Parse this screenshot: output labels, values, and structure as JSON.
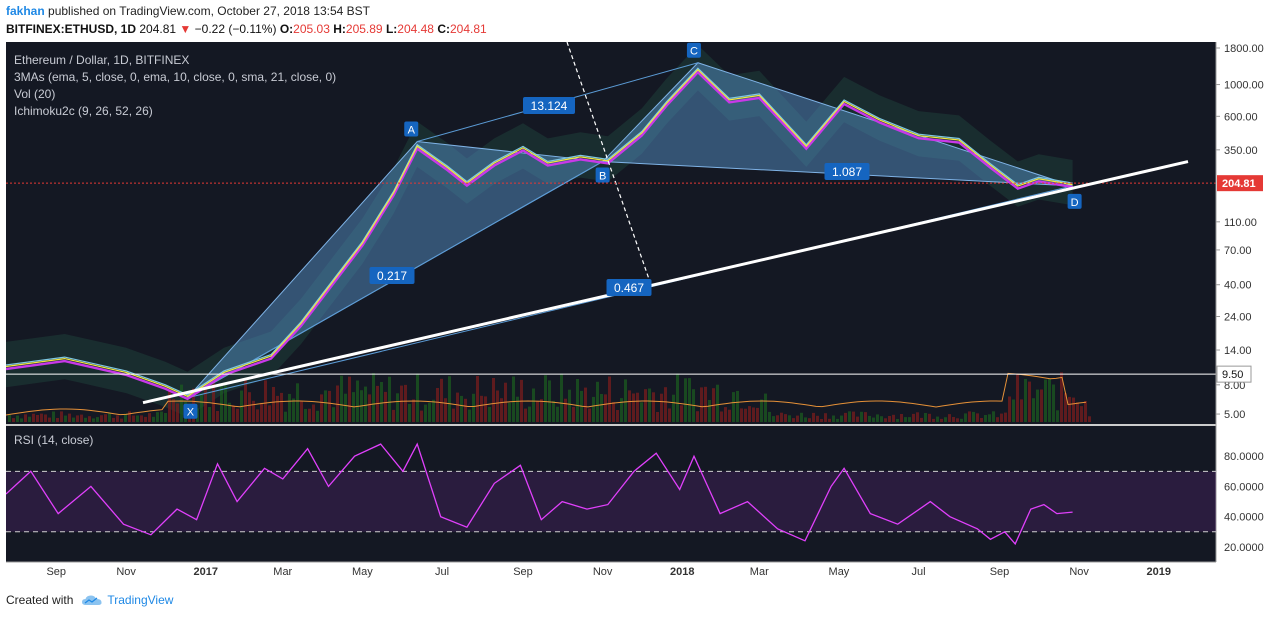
{
  "header": {
    "author": "fakhan",
    "published": "published on TradingView.com, October 27, 2018 13:54 BST",
    "symbol": "BITFINEX:ETHUSD, 1D",
    "last": "204.81",
    "change": "−0.22 (−0.11%)",
    "o_label": "O:",
    "o": "205.03",
    "h_label": "H:",
    "h": "205.89",
    "l_label": "L:",
    "l": "204.48",
    "c_label": "C:",
    "c": "204.81"
  },
  "legend": {
    "title": "Ethereum / Dollar, 1D, BITFINEX",
    "ma": "3MAs (ema, 5, close, 0, ema, 10, close, 0, sma, 21, close, 0)",
    "vol": "Vol (20)",
    "ichimoku": "Ichimoku2c (9, 26, 52, 26)"
  },
  "rsi_label": "RSI (14, close)",
  "footer": {
    "created": "Created with",
    "brand": "TradingView"
  },
  "colors": {
    "bg": "#141823",
    "price_line": "#e53935",
    "rsi": "#e040fb",
    "pattern_fill": "#5b9bd5",
    "label_bg": "#1565c0",
    "trendline": "#ffffff"
  },
  "chart_data": [
    {
      "type": "line",
      "title": "Ethereum / Dollar, 1D, BITFINEX",
      "y_scale": "log",
      "y_ticks": [
        1800,
        1000,
        600,
        350,
        110,
        70,
        40,
        24,
        14,
        8,
        5
      ],
      "y_tick_labels": [
        "1800.00",
        "1000.00",
        "600.00",
        "350.00",
        "110.00",
        "70.00",
        "40.00",
        "24.00",
        "14.00",
        "8.00",
        "5.00"
      ],
      "x_tick_labels": [
        "Sep",
        "Nov",
        "2017",
        "Mar",
        "May",
        "Jul",
        "Sep",
        "Nov",
        "2018",
        "Mar",
        "May",
        "Jul",
        "Sep",
        "Nov",
        "2019"
      ],
      "current_price": 204.81,
      "current_price_label": "204.81",
      "level_line": 9.5,
      "level_label": "9.50",
      "pattern_points": [
        {
          "name": "X",
          "date": "2016-12-18",
          "price": 6.5
        },
        {
          "name": "A",
          "date": "2017-06-12",
          "price": 400
        },
        {
          "name": "B",
          "date": "2017-11-01",
          "price": 290
        },
        {
          "name": "C",
          "date": "2018-01-13",
          "price": 1420
        },
        {
          "name": "D",
          "date": "2018-10-27",
          "price": 196
        }
      ],
      "ratios": [
        "13.124",
        "1.087",
        "0.217",
        "0.467"
      ],
      "series": [
        {
          "values": [
            [
              "2016-08-01",
              11
            ],
            [
              "2016-09-15",
              12.5
            ],
            [
              "2016-11-01",
              10
            ],
            [
              "2016-12-01",
              8
            ],
            [
              "2016-12-18",
              6.8
            ],
            [
              "2017-01-15",
              10
            ],
            [
              "2017-02-20",
              13
            ],
            [
              "2017-03-15",
              22
            ],
            [
              "2017-04-10",
              45
            ],
            [
              "2017-05-01",
              80
            ],
            [
              "2017-05-25",
              180
            ],
            [
              "2017-06-12",
              380
            ],
            [
              "2017-07-05",
              270
            ],
            [
              "2017-07-20",
              210
            ],
            [
              "2017-08-10",
              290
            ],
            [
              "2017-09-01",
              370
            ],
            [
              "2017-09-20",
              290
            ],
            [
              "2017-10-15",
              320
            ],
            [
              "2017-11-05",
              300
            ],
            [
              "2017-12-01",
              470
            ],
            [
              "2017-12-20",
              760
            ],
            [
              "2018-01-13",
              1300
            ],
            [
              "2018-02-06",
              800
            ],
            [
              "2018-03-01",
              860
            ],
            [
              "2018-04-06",
              380
            ],
            [
              "2018-05-05",
              780
            ],
            [
              "2018-06-01",
              580
            ],
            [
              "2018-07-01",
              450
            ],
            [
              "2018-08-01",
              420
            ],
            [
              "2018-08-25",
              280
            ],
            [
              "2018-09-15",
              200
            ],
            [
              "2018-10-01",
              225
            ],
            [
              "2018-10-27",
              205
            ]
          ]
        }
      ]
    },
    {
      "type": "line",
      "title": "RSI (14, close)",
      "y_ticks": [
        80,
        60,
        40,
        20
      ],
      "y_tick_labels": [
        "80.0000",
        "60.0000",
        "40.0000",
        "20.0000"
      ],
      "bands": [
        70,
        30
      ],
      "series": [
        {
          "values": [
            [
              "2016-08-01",
              55
            ],
            [
              "2016-08-20",
              70
            ],
            [
              "2016-09-10",
              42
            ],
            [
              "2016-10-05",
              60
            ],
            [
              "2016-10-30",
              35
            ],
            [
              "2016-11-20",
              28
            ],
            [
              "2016-12-10",
              45
            ],
            [
              "2016-12-25",
              38
            ],
            [
              "2017-01-10",
              75
            ],
            [
              "2017-01-25",
              50
            ],
            [
              "2017-02-15",
              72
            ],
            [
              "2017-03-01",
              65
            ],
            [
              "2017-03-20",
              85
            ],
            [
              "2017-04-05",
              60
            ],
            [
              "2017-04-25",
              80
            ],
            [
              "2017-05-15",
              88
            ],
            [
              "2017-06-01",
              70
            ],
            [
              "2017-06-12",
              88
            ],
            [
              "2017-06-30",
              40
            ],
            [
              "2017-07-20",
              33
            ],
            [
              "2017-08-10",
              62
            ],
            [
              "2017-08-30",
              74
            ],
            [
              "2017-09-15",
              38
            ],
            [
              "2017-10-01",
              50
            ],
            [
              "2017-10-20",
              45
            ],
            [
              "2017-11-05",
              48
            ],
            [
              "2017-11-25",
              70
            ],
            [
              "2017-12-12",
              82
            ],
            [
              "2017-12-30",
              58
            ],
            [
              "2018-01-10",
              80
            ],
            [
              "2018-01-30",
              42
            ],
            [
              "2018-02-20",
              50
            ],
            [
              "2018-03-15",
              32
            ],
            [
              "2018-04-05",
              24
            ],
            [
              "2018-04-25",
              60
            ],
            [
              "2018-05-05",
              72
            ],
            [
              "2018-05-25",
              42
            ],
            [
              "2018-06-15",
              35
            ],
            [
              "2018-07-10",
              50
            ],
            [
              "2018-07-25",
              40
            ],
            [
              "2018-08-15",
              32
            ],
            [
              "2018-08-25",
              25
            ],
            [
              "2018-09-05",
              30
            ],
            [
              "2018-09-13",
              22
            ],
            [
              "2018-09-25",
              45
            ],
            [
              "2018-10-05",
              48
            ],
            [
              "2018-10-15",
              42
            ],
            [
              "2018-10-27",
              43
            ]
          ]
        }
      ]
    }
  ]
}
